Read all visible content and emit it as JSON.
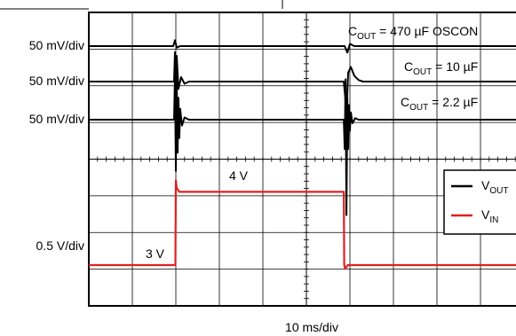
{
  "chart_data": {
    "type": "line",
    "xlabel": "10 ms/div",
    "x_divisions": 10,
    "x_unit": "ms",
    "scale_labels": [
      "50 mV/div",
      "50 mV/div",
      "50 mV/div",
      "0.5 V/div"
    ],
    "step_labels": {
      "low": "3 V",
      "high": "4 V"
    },
    "series": [
      {
        "name": "V_OUT",
        "channel": "C_OUT = 470 µF OSCON",
        "color": "#000000",
        "label": {
          "main": "C",
          "sub": "OUT",
          "rest": " = 470 µF OSCON"
        },
        "x": [
          0,
          19.4,
          19.8,
          20.2,
          21,
          58.8,
          59.4,
          60,
          61,
          100
        ],
        "y": [
          0,
          0,
          8,
          -2,
          0,
          0,
          -9,
          3,
          0,
          0
        ]
      },
      {
        "name": "V_OUT",
        "channel": "C_OUT = 10 µF",
        "color": "#000000",
        "label": {
          "main": "C",
          "sub": "OUT",
          "rest": " = 10 µF"
        },
        "x": [
          0,
          19.6,
          19.8,
          20.0,
          20.2,
          20.6,
          21.2,
          22,
          23,
          58.6,
          58.9,
          59.2,
          59.6,
          60.2,
          61,
          62,
          63,
          100
        ],
        "y": [
          0,
          0,
          40,
          -55,
          35,
          -10,
          6,
          -3,
          0,
          0,
          -20,
          -48,
          12,
          20,
          8,
          2,
          0,
          0
        ]
      },
      {
        "name": "V_OUT",
        "channel": "C_OUT = 2.2 µF",
        "color": "#000000",
        "label": {
          "main": "C",
          "sub": "OUT",
          "rest": " = 2.2 µF"
        },
        "x": [
          0,
          19.6,
          19.8,
          20.0,
          20.2,
          20.4,
          20.6,
          20.8,
          21.0,
          21.4,
          22.0,
          23,
          58.6,
          58.8,
          59.0,
          59.2,
          59.4,
          59.6,
          59.8,
          60.0,
          60.2,
          60.6,
          61.2,
          62,
          100
        ],
        "y": [
          0,
          0,
          60,
          -70,
          55,
          -45,
          30,
          -25,
          15,
          -8,
          3,
          0,
          0,
          -40,
          55,
          -130,
          30,
          -40,
          20,
          -15,
          10,
          -5,
          2,
          0,
          0
        ]
      },
      {
        "name": "V_IN",
        "color": "#e02020",
        "label": {
          "main": "V",
          "sub": "IN",
          "rest": ""
        },
        "x": [
          0,
          19.9,
          20.0,
          20.2,
          20.8,
          58.6,
          58.7,
          58.9,
          59.5,
          100
        ],
        "y": [
          3.0,
          3.0,
          4.18,
          4.07,
          4.02,
          4.02,
          3.0,
          2.95,
          3.0,
          3.0
        ]
      }
    ],
    "legend": [
      {
        "series": "V_OUT",
        "main": "V",
        "sub": "OUT",
        "color": "#000000"
      },
      {
        "series": "V_IN",
        "main": "V",
        "sub": "IN",
        "color": "#e02020"
      }
    ],
    "legend_position": "right",
    "grid": true
  }
}
